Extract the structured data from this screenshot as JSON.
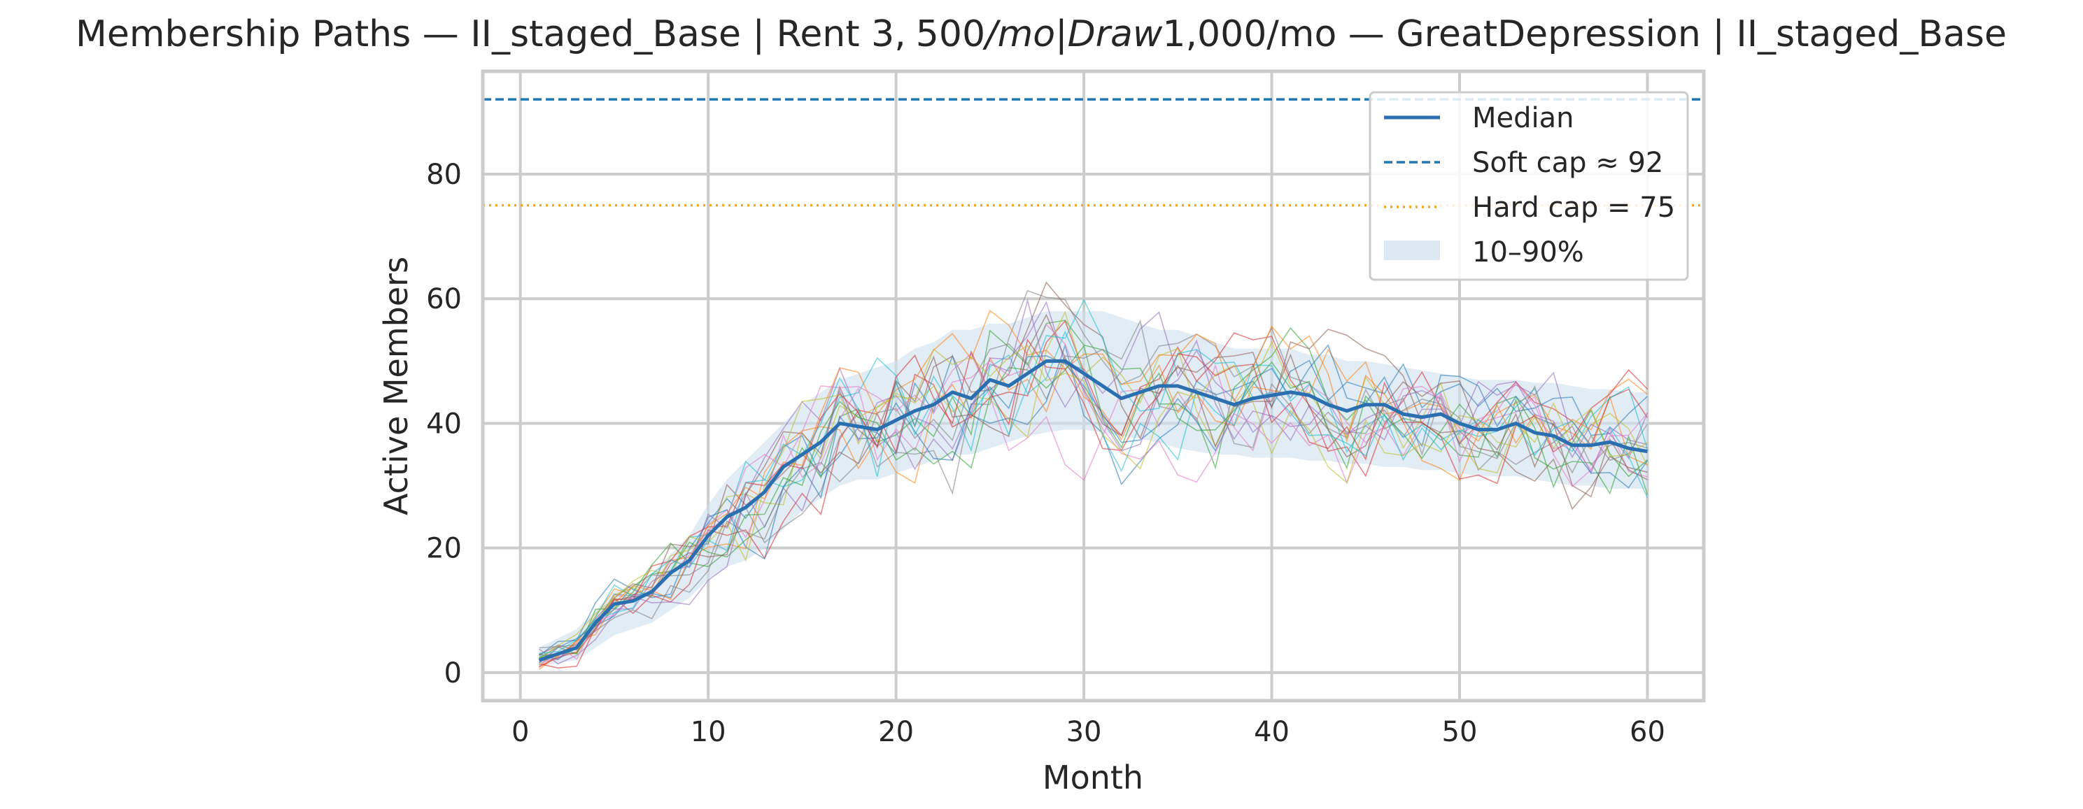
{
  "chart_data": {
    "type": "line",
    "title": "Membership Paths — II_staged_Base | Rent 3, 500/mo|Draw1,000/mo — GreatDepression | II_staged_Base",
    "title_parts": {
      "prefix": "Membership Paths — II_staged_Base | Rent 3",
      "sep": ",",
      "math1": "500",
      "math2": "/",
      "math3": "mo",
      "math4": "|",
      "math5": "Draw",
      "suffix": "1,000/mo — GreatDepression | II_staged_Base"
    },
    "xlabel": "Month",
    "ylabel": "Active Members",
    "xlim": [
      -2,
      63
    ],
    "ylim": [
      -4.5,
      96.5
    ],
    "xticks": [
      0,
      10,
      20,
      30,
      40,
      50,
      60
    ],
    "yticks": [
      0,
      20,
      40,
      60,
      80
    ],
    "grid": true,
    "legend_position": "top-right",
    "legend": [
      {
        "label": "Median",
        "style": "solid",
        "color": "#2a6fb0"
      },
      {
        "label": "Soft cap ≈ 92",
        "style": "dashed",
        "color": "#1f77b4"
      },
      {
        "label": "Hard cap = 75",
        "style": "dotted",
        "color": "#f5a623"
      },
      {
        "label": "10–90%",
        "style": "band",
        "color": "#dde8f2"
      }
    ],
    "soft_cap": 92,
    "hard_cap": 75,
    "months": [
      1,
      2,
      3,
      4,
      5,
      6,
      7,
      8,
      9,
      10,
      11,
      12,
      13,
      14,
      15,
      16,
      17,
      18,
      19,
      20,
      21,
      22,
      23,
      24,
      25,
      26,
      27,
      28,
      29,
      30,
      31,
      32,
      33,
      34,
      35,
      36,
      37,
      38,
      39,
      40,
      41,
      42,
      43,
      44,
      45,
      46,
      47,
      48,
      49,
      50,
      51,
      52,
      53,
      54,
      55,
      56,
      57,
      58,
      59,
      60
    ],
    "median": [
      2,
      3,
      4,
      8,
      11,
      11.5,
      13,
      16,
      18,
      22,
      25,
      26.5,
      29,
      33,
      35,
      37,
      40,
      39.5,
      39,
      40.5,
      42,
      43,
      45,
      44,
      47,
      46,
      48,
      50,
      50,
      48,
      46,
      44,
      45,
      46,
      46,
      45,
      44,
      43,
      44,
      44.5,
      45,
      44.5,
      43,
      42,
      43,
      43,
      41.5,
      41,
      41.5,
      40,
      39,
      39,
      40,
      38.5,
      38,
      36.5,
      36.5,
      37,
      36,
      35.5
    ],
    "band_p10": [
      1,
      1.5,
      2,
      4,
      6,
      7,
      8,
      10,
      12,
      15,
      17,
      18,
      20,
      23,
      26,
      28,
      30,
      31,
      31,
      32,
      33,
      34,
      35,
      35,
      36,
      37,
      38,
      38.5,
      39,
      39,
      38.5,
      38,
      37.5,
      37,
      36,
      35.5,
      35,
      35,
      34.5,
      34.5,
      34.5,
      34,
      34,
      33.5,
      33.5,
      33,
      33,
      32.5,
      32.5,
      32,
      31.5,
      31.5,
      31.5,
      31,
      30.5,
      30,
      30,
      29.5,
      29.5,
      29.5
    ],
    "band_p90": [
      4,
      5.5,
      7,
      10,
      13,
      14,
      16,
      19,
      22,
      27,
      31,
      34,
      37,
      40,
      43,
      45,
      47,
      48,
      49,
      50,
      52,
      53,
      55,
      55,
      56,
      56,
      57,
      58,
      58,
      58,
      58,
      57,
      56,
      55,
      55,
      54,
      53,
      52,
      52,
      52,
      52,
      51,
      51,
      50,
      50,
      49.5,
      49,
      48.5,
      48,
      47.5,
      47,
      47,
      47,
      46.5,
      46.5,
      46,
      45.5,
      45.5,
      45,
      45
    ],
    "path_colors": [
      "#1f77b4",
      "#ff7f0e",
      "#2ca02c",
      "#d62728",
      "#9467bd",
      "#8c564b",
      "#e377c2",
      "#7f7f7f",
      "#bcbd22",
      "#17becf"
    ],
    "path_count": 20
  }
}
